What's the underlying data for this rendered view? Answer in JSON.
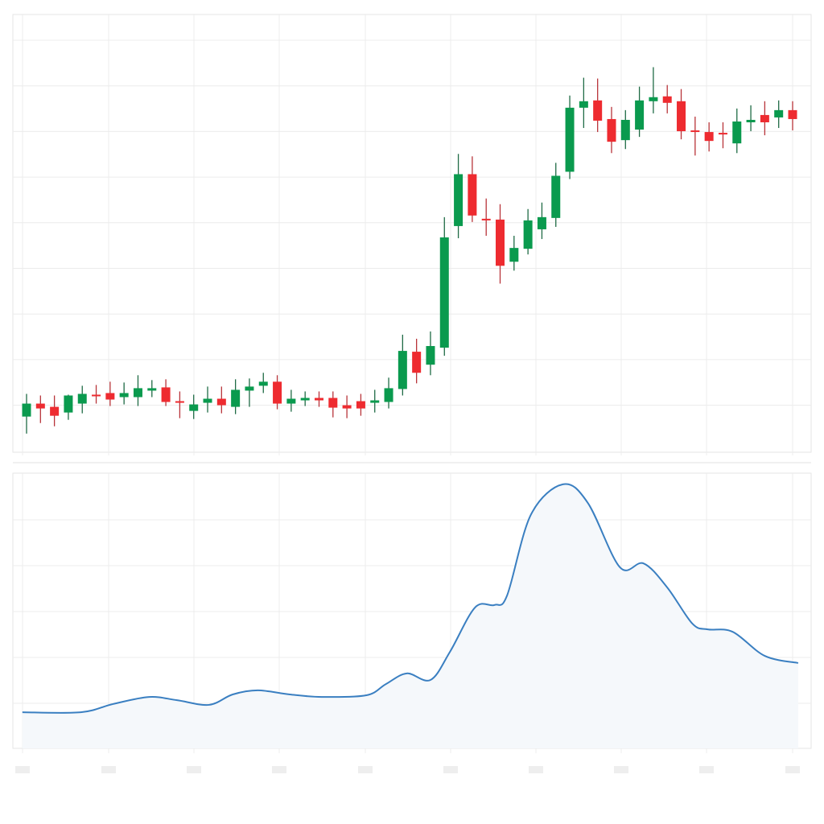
{
  "chart_data": [
    {
      "type": "candlestick",
      "title": "",
      "xlabel": "",
      "ylabel": "",
      "x": "bar index",
      "ylim": [
        0,
        108
      ],
      "grid": true,
      "colors": {
        "up": "#0a9a4e",
        "down": "#ee2b30",
        "grid": "#ececec"
      },
      "ohlc": [
        [
          8.8,
          14.4,
          4.6,
          12
        ],
        [
          12,
          14,
          7.2,
          10.8
        ],
        [
          11.2,
          14,
          6.4,
          9
        ],
        [
          9.8,
          14.2,
          8,
          14
        ],
        [
          12,
          16.4,
          9.6,
          14.4
        ],
        [
          14.2,
          16.6,
          12,
          14
        ],
        [
          14.6,
          17.4,
          11.4,
          13
        ],
        [
          13.6,
          17.2,
          11.8,
          14.6
        ],
        [
          13.6,
          19,
          11.4,
          15.8
        ],
        [
          15.2,
          17.8,
          13.6,
          15.8
        ],
        [
          16,
          18,
          11.4,
          12.4
        ],
        [
          12.6,
          15,
          8.4,
          12.4
        ],
        [
          10.2,
          14.2,
          8.2,
          11.8
        ],
        [
          12.2,
          16.2,
          9.8,
          13.2
        ],
        [
          13.2,
          16.2,
          9.6,
          11.6
        ],
        [
          11.2,
          18,
          9.4,
          15.4
        ],
        [
          15.2,
          18.2,
          11.2,
          16.2
        ],
        [
          16.4,
          19.6,
          14.6,
          17.4
        ],
        [
          17.4,
          19,
          10.6,
          12
        ],
        [
          12,
          15.4,
          10,
          13.2
        ],
        [
          12.8,
          15,
          11.4,
          13.4
        ],
        [
          13.4,
          15,
          11.2,
          12.8
        ],
        [
          13.4,
          15,
          8.6,
          11
        ],
        [
          11.6,
          14,
          8.4,
          10.8
        ],
        [
          12.6,
          14.4,
          9,
          10.8
        ],
        [
          12.2,
          15.4,
          9.8,
          12.8
        ],
        [
          12.4,
          18.4,
          10.8,
          15.8
        ],
        [
          15.6,
          29,
          14,
          25
        ],
        [
          24.8,
          28,
          17,
          19.6
        ],
        [
          21.6,
          29.8,
          19,
          26.2
        ],
        [
          25.8,
          58,
          23.8,
          53
        ],
        [
          55.8,
          73.6,
          52.8,
          68.6
        ],
        [
          68.6,
          73,
          56.8,
          58.4
        ],
        [
          57.6,
          62.6,
          53.4,
          57.2
        ],
        [
          57.4,
          61.2,
          41.6,
          46
        ],
        [
          47,
          53.4,
          44.8,
          50.4
        ],
        [
          50.2,
          60,
          48.8,
          57.2
        ],
        [
          55,
          61.6,
          52.6,
          58
        ],
        [
          57.8,
          71.4,
          55.6,
          68.2
        ],
        [
          69.2,
          88,
          67.4,
          85
        ],
        [
          85,
          92.4,
          80,
          86.6
        ],
        [
          86.8,
          92.2,
          79,
          81.8
        ],
        [
          82.2,
          85.2,
          73.8,
          76.6
        ],
        [
          77,
          84.4,
          74.8,
          82
        ],
        [
          79.6,
          90.2,
          77.8,
          86.8
        ],
        [
          86.6,
          95,
          83.6,
          87.6
        ],
        [
          87.8,
          90.6,
          83.6,
          86.2
        ],
        [
          86.6,
          89.6,
          77.2,
          79.2
        ],
        [
          79.4,
          82.8,
          73.2,
          79.2
        ],
        [
          79,
          81.4,
          74.2,
          76.8
        ],
        [
          78.8,
          81.4,
          75,
          78.4
        ],
        [
          76.2,
          84.8,
          73.8,
          81.6
        ],
        [
          81.4,
          85.6,
          79.2,
          82
        ],
        [
          83.2,
          86.6,
          78.2,
          81.4
        ],
        [
          82.6,
          86.8,
          80,
          84.4
        ],
        [
          84.4,
          86.6,
          79.4,
          82.2
        ]
      ]
    },
    {
      "type": "area",
      "title": "",
      "xlabel": "",
      "ylabel": "",
      "ylim": [
        0,
        100
      ],
      "grid": true,
      "colors": {
        "line": "#3a7fc1",
        "fill": "#f5f8fb"
      },
      "x": [
        -0.3,
        3.9,
        6.2,
        8.8,
        10.8,
        13.1,
        14.8,
        16.6,
        18.9,
        21.2,
        24.4,
        25.8,
        27.3,
        29,
        30.4,
        32.2,
        33.6,
        34.5,
        36.2,
        38.5,
        40.3,
        42.6,
        44.3,
        46,
        47.8,
        48.9,
        50.7,
        53,
        55.4
      ],
      "values": [
        13.2,
        13.2,
        16.2,
        18.8,
        17.6,
        15.9,
        19.7,
        21.2,
        19.7,
        18.8,
        19.4,
        23.5,
        27.4,
        25,
        35.3,
        51.5,
        52.4,
        55.9,
        85.3,
        96.5,
        89.7,
        66.2,
        67.6,
        58.8,
        45.6,
        43.5,
        42.6,
        33.8,
        31.2
      ]
    }
  ]
}
